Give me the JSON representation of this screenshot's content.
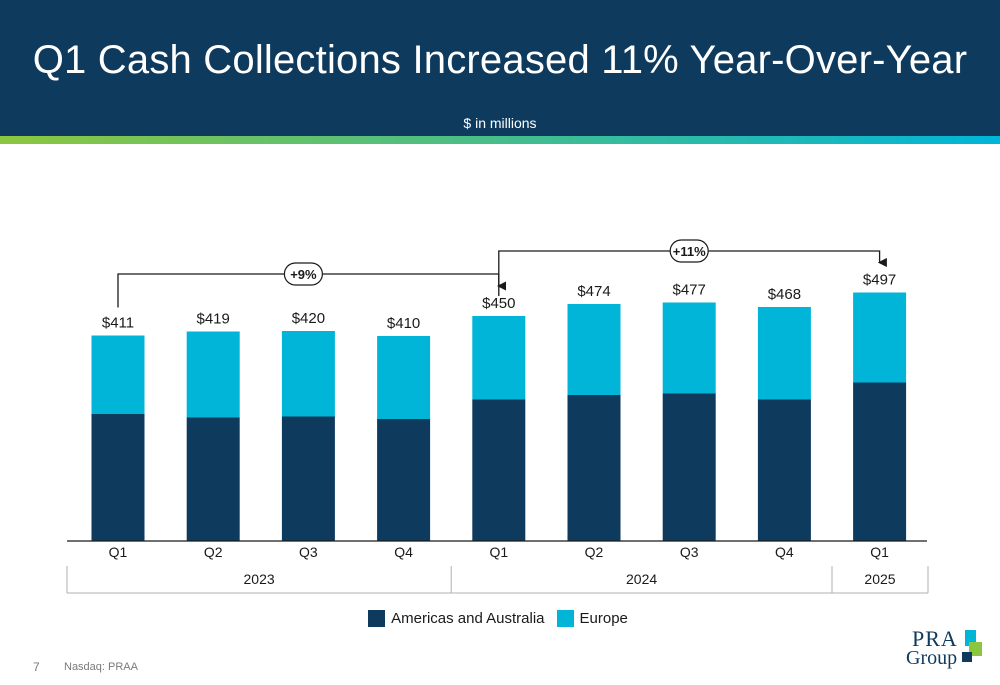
{
  "slide": {
    "title": "Q1 Cash Collections Increased 11% Year-Over-Year",
    "subtitle": "$ in millions",
    "page_number": "7",
    "footer_text": "Nasdaq: PRAA",
    "logo_text_top": "PRA",
    "logo_text_bottom": "Group"
  },
  "colors": {
    "header_bg": "#0e3a5e",
    "americas": "#0e3a5e",
    "europe": "#00b5d8",
    "accent_start": "#8cc63f",
    "accent_end": "#00b5d8"
  },
  "legend": [
    {
      "label": "Americas and Australia",
      "color": "#0e3a5e"
    },
    {
      "label": "Europe",
      "color": "#00b5d8"
    }
  ],
  "chart_data": {
    "type": "bar",
    "stacked": true,
    "categories": [
      "Q1",
      "Q2",
      "Q3",
      "Q4",
      "Q1",
      "Q2",
      "Q3",
      "Q4",
      "Q1"
    ],
    "year_groups": [
      {
        "label": "2023",
        "count": 4
      },
      {
        "label": "2024",
        "count": 4
      },
      {
        "label": "2025",
        "count": 1
      }
    ],
    "series": [
      {
        "name": "Americas and Australia",
        "values": [
          254,
          247,
          249,
          244,
          283,
          292,
          295,
          283,
          317
        ]
      },
      {
        "name": "Europe",
        "values": [
          157,
          172,
          171,
          166,
          167,
          182,
          182,
          185,
          180
        ]
      }
    ],
    "totals": [
      "$411",
      "$419",
      "$420",
      "$410",
      "$450",
      "$474",
      "$477",
      "$468",
      "$497"
    ],
    "total_values": [
      411,
      419,
      420,
      410,
      450,
      474,
      477,
      468,
      497
    ],
    "ylim": [
      0,
      540
    ],
    "annotations": [
      {
        "label": "+9%",
        "from_index": 0,
        "to_index": 4
      },
      {
        "label": "+11%",
        "from_index": 4,
        "to_index": 8
      }
    ]
  }
}
